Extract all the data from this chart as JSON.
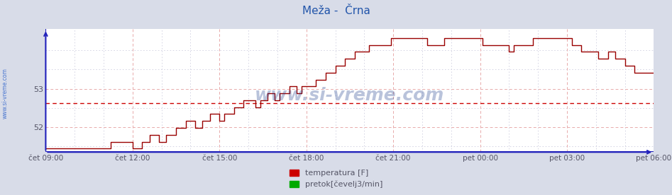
{
  "title": "Meža -  Črna",
  "title_color": "#2255aa",
  "title_fontsize": 11,
  "bg_color": "#d8dce8",
  "plot_bg_color": "#ffffff",
  "x_tick_labels": [
    "čet 09:00",
    "čet 12:00",
    "čet 15:00",
    "čet 18:00",
    "čet 21:00",
    "pet 00:00",
    "pet 03:00",
    "pet 06:00"
  ],
  "x_tick_positions": [
    0,
    36,
    72,
    108,
    144,
    180,
    216,
    252
  ],
  "ylim": [
    51.35,
    54.55
  ],
  "xlim": [
    0,
    252
  ],
  "y_avg_line": 52.62,
  "grid_color_major": "#e8aaaa",
  "grid_color_minor": "#d0d0e0",
  "axis_color": "#2222bb",
  "tick_label_color": "#555566",
  "watermark_text": "www.si-vreme.com",
  "watermark_color": "#1a3a8a",
  "watermark_alpha": 0.3,
  "left_label_text": "www.si-vreme.com",
  "left_label_color": "#3366cc",
  "legend_items": [
    {
      "label": "temperatura [F]",
      "color": "#cc0000"
    },
    {
      "label": "pretok[čevelj3/min]",
      "color": "#00aa00"
    }
  ],
  "temp_data": [
    [
      0,
      51.44
    ],
    [
      27,
      51.44
    ],
    [
      27,
      51.62
    ],
    [
      36,
      51.62
    ],
    [
      36,
      51.44
    ],
    [
      40,
      51.44
    ],
    [
      40,
      51.62
    ],
    [
      43,
      51.62
    ],
    [
      43,
      51.8
    ],
    [
      47,
      51.8
    ],
    [
      47,
      51.62
    ],
    [
      50,
      51.62
    ],
    [
      50,
      51.8
    ],
    [
      54,
      51.8
    ],
    [
      54,
      51.98
    ],
    [
      58,
      51.98
    ],
    [
      58,
      52.16
    ],
    [
      62,
      52.16
    ],
    [
      62,
      51.98
    ],
    [
      65,
      51.98
    ],
    [
      65,
      52.16
    ],
    [
      68,
      52.16
    ],
    [
      68,
      52.34
    ],
    [
      72,
      52.34
    ],
    [
      72,
      52.16
    ],
    [
      74,
      52.16
    ],
    [
      74,
      52.34
    ],
    [
      78,
      52.34
    ],
    [
      78,
      52.52
    ],
    [
      82,
      52.52
    ],
    [
      82,
      52.7
    ],
    [
      87,
      52.7
    ],
    [
      87,
      52.52
    ],
    [
      89,
      52.52
    ],
    [
      89,
      52.7
    ],
    [
      92,
      52.7
    ],
    [
      92,
      52.88
    ],
    [
      95,
      52.88
    ],
    [
      95,
      52.7
    ],
    [
      97,
      52.7
    ],
    [
      97,
      52.88
    ],
    [
      101,
      52.88
    ],
    [
      101,
      53.06
    ],
    [
      104,
      53.06
    ],
    [
      104,
      52.88
    ],
    [
      106,
      52.88
    ],
    [
      106,
      53.06
    ],
    [
      112,
      53.06
    ],
    [
      112,
      53.24
    ],
    [
      116,
      53.24
    ],
    [
      116,
      53.42
    ],
    [
      120,
      53.42
    ],
    [
      120,
      53.6
    ],
    [
      124,
      53.6
    ],
    [
      124,
      53.78
    ],
    [
      128,
      53.78
    ],
    [
      128,
      53.96
    ],
    [
      134,
      53.96
    ],
    [
      134,
      54.14
    ],
    [
      143,
      54.14
    ],
    [
      143,
      54.32
    ],
    [
      158,
      54.32
    ],
    [
      158,
      54.14
    ],
    [
      165,
      54.14
    ],
    [
      165,
      54.32
    ],
    [
      181,
      54.32
    ],
    [
      181,
      54.14
    ],
    [
      192,
      54.14
    ],
    [
      192,
      53.96
    ],
    [
      194,
      53.96
    ],
    [
      194,
      54.14
    ],
    [
      202,
      54.14
    ],
    [
      202,
      54.32
    ],
    [
      218,
      54.32
    ],
    [
      218,
      54.14
    ],
    [
      222,
      54.14
    ],
    [
      222,
      53.96
    ],
    [
      229,
      53.96
    ],
    [
      229,
      53.78
    ],
    [
      233,
      53.78
    ],
    [
      233,
      53.96
    ],
    [
      236,
      53.96
    ],
    [
      236,
      53.78
    ],
    [
      240,
      53.78
    ],
    [
      240,
      53.6
    ],
    [
      244,
      53.6
    ],
    [
      244,
      53.42
    ],
    [
      252,
      53.42
    ]
  ]
}
